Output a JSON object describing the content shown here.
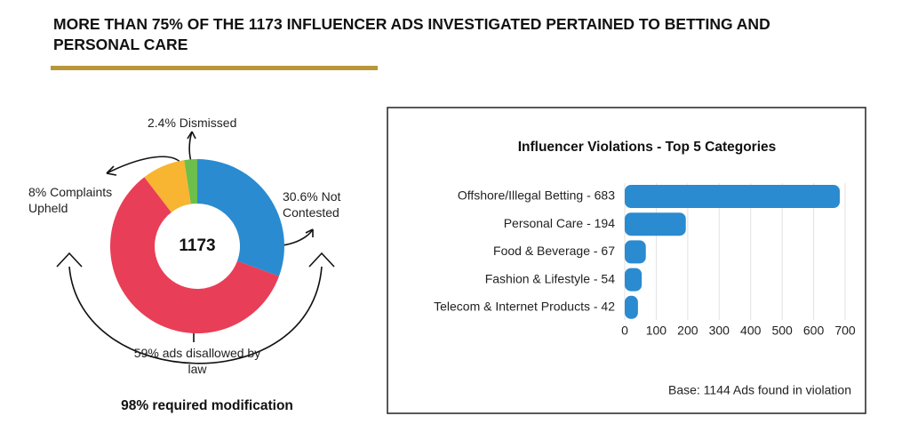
{
  "title": "MORE THAN 75% OF THE 1173 INFLUENCER ADS INVESTIGATED PERTAINED TO BETTING AND PERSONAL CARE",
  "chart_data": [
    {
      "type": "donut",
      "center_label": "1173",
      "values": [
        30.6,
        59,
        8,
        2.4
      ],
      "value_labels": [
        "30.6% Not Contested",
        "59% ads disallowed by law",
        "8% Complaints Upheld",
        "2.4% Dismissed"
      ],
      "colors": [
        "#2a8bd0",
        "#e93e57",
        "#f8b531",
        "#6cbf4b"
      ],
      "footer": "98% required modification"
    },
    {
      "type": "barh",
      "title": "Influencer Violations - Top 5 Categories",
      "categories": [
        "Offshore/Illegal Betting - 683",
        "Personal Care - 194",
        "Food & Beverage - 67",
        "Fashion & Lifestyle - 54",
        "Telecom & Internet Products - 42"
      ],
      "values": [
        683,
        194,
        67,
        54,
        42
      ],
      "color": "#2a8bd0",
      "xlim": [
        0,
        700
      ],
      "xticks": [
        0,
        100,
        200,
        300,
        400,
        500,
        600,
        700
      ],
      "grid": true,
      "note": "Base: 1144 Ads found in violation"
    }
  ]
}
